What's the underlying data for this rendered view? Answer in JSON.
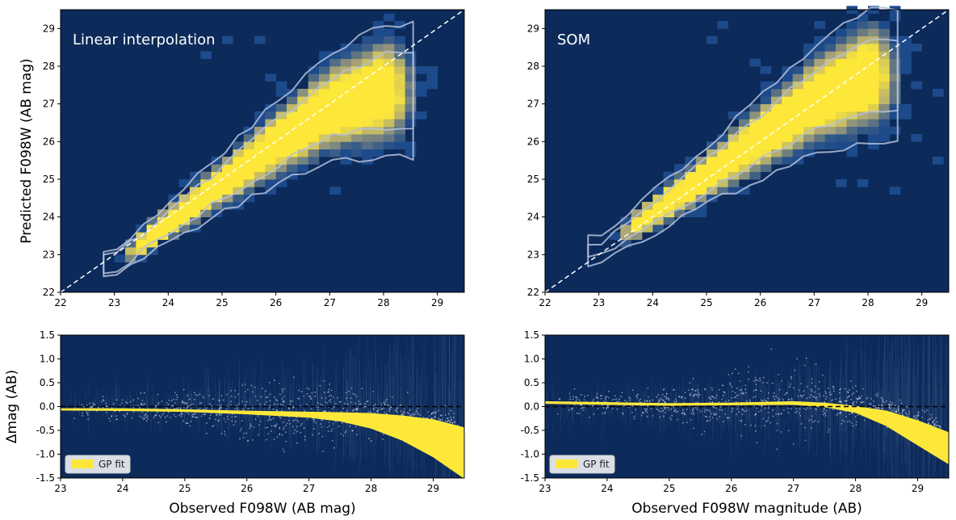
{
  "colors": {
    "background": "#0c2a5a",
    "density_high": "#fde83a",
    "density_mid": "#a6a27a",
    "density_low": "#1d4a8a",
    "contour": "#b4c0dc",
    "gp_fit": "#fde83a",
    "points": "#e6ebf5"
  },
  "chart_data": [
    {
      "type": "heatmap",
      "panel": "top-left",
      "title": "Linear interpolation",
      "xlabel": "",
      "ylabel": "Predicted F098W (AB mag)",
      "xlim": [
        22,
        29.5
      ],
      "ylim": [
        22,
        29.5
      ],
      "xticks": [
        "22",
        "23",
        "24",
        "25",
        "26",
        "27",
        "28",
        "29"
      ],
      "yticks": [
        "22",
        "23",
        "24",
        "25",
        "26",
        "27",
        "28",
        "29"
      ],
      "reference_line": "y = x",
      "density_ridge": {
        "x": [
          23,
          24,
          25,
          26,
          27,
          28
        ],
        "y": [
          22.75,
          23.85,
          24.9,
          25.95,
          26.9,
          27.35
        ]
      },
      "density_spread": {
        "x": [
          23,
          24,
          25,
          26,
          27,
          28
        ],
        "halfwidth": [
          0.15,
          0.25,
          0.35,
          0.5,
          0.65,
          0.8
        ]
      },
      "peak_extent": [
        23.6,
        27.9
      ]
    },
    {
      "type": "heatmap",
      "panel": "top-right",
      "title": "SOM",
      "xlabel": "",
      "ylabel": "",
      "xlim": [
        22,
        29.5
      ],
      "ylim": [
        22,
        29.5
      ],
      "xticks": [
        "22",
        "23",
        "24",
        "25",
        "26",
        "27",
        "28",
        "29"
      ],
      "yticks": [
        "22",
        "23",
        "24",
        "25",
        "26",
        "27",
        "28",
        "29"
      ],
      "reference_line": "y = x",
      "density_ridge": {
        "x": [
          23,
          24,
          25,
          26,
          27,
          28
        ],
        "y": [
          23.1,
          24.1,
          25.1,
          26.1,
          27.1,
          27.75
        ]
      },
      "density_spread": {
        "x": [
          23,
          24,
          25,
          26,
          27,
          28
        ],
        "halfwidth": [
          0.15,
          0.25,
          0.35,
          0.5,
          0.65,
          0.8
        ]
      },
      "peak_extent": [
        23.8,
        27.9
      ]
    },
    {
      "type": "scatter",
      "panel": "bottom-left",
      "xlabel": "Observed F098W (AB mag)",
      "ylabel": "Δmag (AB)",
      "xlim": [
        23,
        29.5
      ],
      "ylim": [
        -1.5,
        1.5
      ],
      "xticks": [
        "23",
        "24",
        "25",
        "26",
        "27",
        "28",
        "29"
      ],
      "yticks": [
        "1.5",
        "1.0",
        "0.5",
        "0.0",
        "-0.5",
        "-1.0",
        "-1.5"
      ],
      "zero_line": 0.0,
      "legend": [
        "GP fit"
      ],
      "gp_fit": {
        "x": [
          23,
          24,
          25,
          26,
          27,
          27.5,
          28,
          28.5,
          29,
          29.5
        ],
        "upper": [
          -0.05,
          -0.05,
          -0.07,
          -0.1,
          -0.12,
          -0.13,
          -0.15,
          -0.2,
          -0.28,
          -0.45
        ],
        "lower": [
          -0.07,
          -0.08,
          -0.1,
          -0.15,
          -0.22,
          -0.3,
          -0.45,
          -0.7,
          -1.05,
          -1.5
        ]
      }
    },
    {
      "type": "scatter",
      "panel": "bottom-right",
      "xlabel": "Observed F098W magnitude (AB)",
      "ylabel": "",
      "xlim": [
        23,
        29.5
      ],
      "ylim": [
        -1.5,
        1.5
      ],
      "xticks": [
        "23",
        "24",
        "25",
        "26",
        "27",
        "28",
        "29"
      ],
      "yticks": [
        "1.5",
        "1.0",
        "0.5",
        "0.0",
        "-0.5",
        "-1.0",
        "-1.5"
      ],
      "zero_line": 0.0,
      "legend": [
        "GP fit"
      ],
      "gp_fit": {
        "x": [
          23,
          24,
          25,
          26,
          27,
          27.5,
          28,
          28.5,
          29,
          29.5
        ],
        "upper": [
          0.1,
          0.08,
          0.06,
          0.07,
          0.1,
          0.07,
          0.0,
          -0.1,
          -0.3,
          -0.55
        ],
        "lower": [
          0.07,
          0.05,
          0.03,
          0.04,
          0.05,
          0.0,
          -0.12,
          -0.4,
          -0.8,
          -1.2
        ]
      }
    }
  ]
}
